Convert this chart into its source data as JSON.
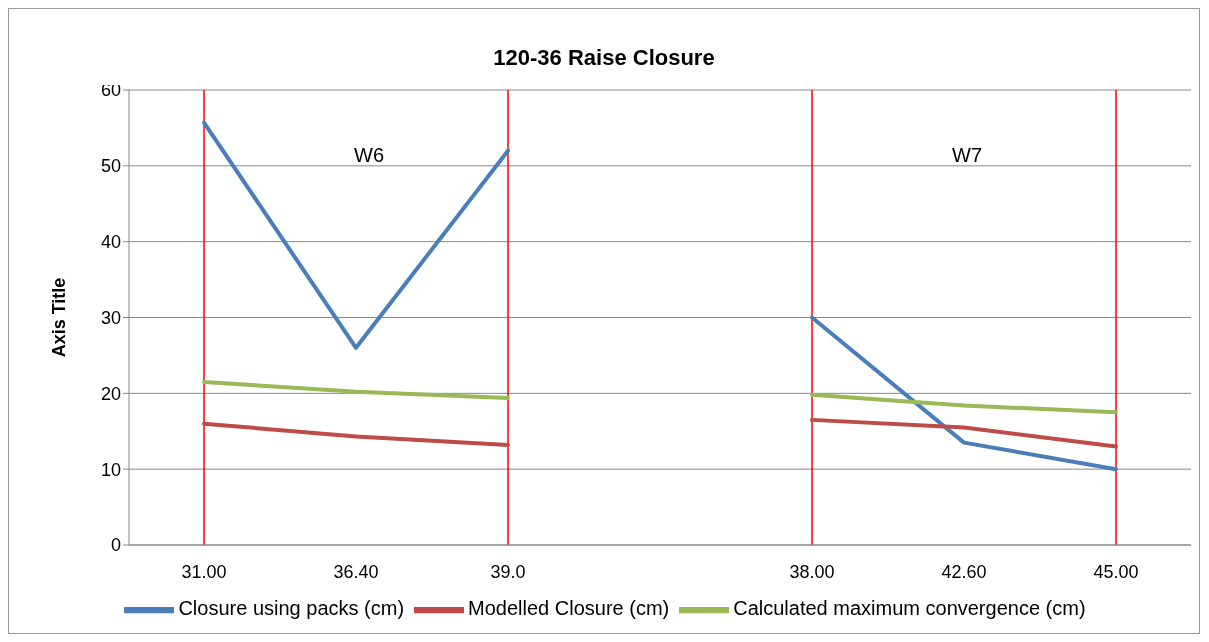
{
  "chart_data": {
    "type": "line",
    "title": "120-36 Raise Closure",
    "ylabel": "Axis Title",
    "categories": [
      "31.00",
      "36.40",
      "39.0",
      null,
      "38.00",
      "42.60",
      "45.00"
    ],
    "series": [
      {
        "name": "Closure using packs (cm)",
        "color": "#4a7ebb",
        "values": [
          55.7,
          26,
          52,
          null,
          30,
          13.5,
          10
        ]
      },
      {
        "name": "Modelled Closure (cm)",
        "color": "#be4b48",
        "values": [
          16,
          14.3,
          13.2,
          null,
          16.5,
          15.5,
          13
        ]
      },
      {
        "name": "Calculated maximum convergence (cm)",
        "color": "#98b954",
        "values": [
          21.5,
          20.2,
          19.4,
          null,
          19.8,
          18.4,
          17.5
        ]
      }
    ],
    "ylim": [
      0,
      60
    ],
    "yticks": [
      0,
      10,
      20,
      30,
      40,
      50,
      60
    ],
    "grid": "y",
    "legend": "bottom",
    "marker": "none",
    "line_style": "solid",
    "ref_lines": [
      {
        "axis": "x",
        "value": "31.00",
        "color": "#ff0000"
      },
      {
        "axis": "x",
        "value": "39.0",
        "color": "#ff0000"
      },
      {
        "axis": "x",
        "value": "38.00",
        "color": "#ff0000"
      },
      {
        "axis": "x",
        "value": "45.00",
        "color": "#ff0000"
      }
    ],
    "annotations": [
      "W6",
      "W7"
    ]
  }
}
